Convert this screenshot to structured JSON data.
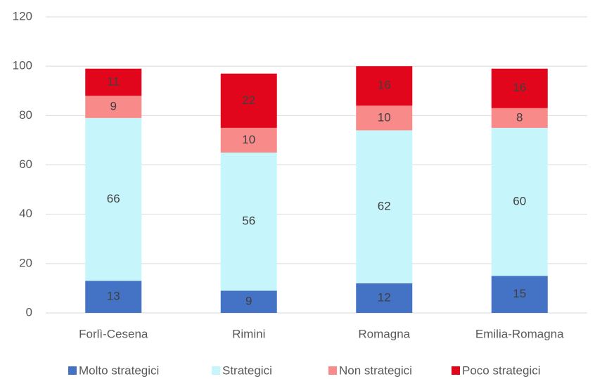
{
  "chart_data": {
    "type": "stacked_bar",
    "categories": [
      "Forlì-Cesena",
      "Rimini",
      "Romagna",
      "Emilia-Romagna"
    ],
    "series": [
      {
        "name": "Molto strategici",
        "color": "#4472c4",
        "values": [
          13,
          9,
          12,
          15
        ]
      },
      {
        "name": "Strategici",
        "color": "#c6f6fb",
        "values": [
          66,
          56,
          62,
          60
        ]
      },
      {
        "name": "Non strategici",
        "color": "#f88a8a",
        "values": [
          9,
          10,
          10,
          8
        ]
      },
      {
        "name": "Poco strategici",
        "color": "#e2061c",
        "values": [
          11,
          22,
          16,
          16
        ]
      }
    ],
    "ylim": [
      0,
      120
    ],
    "yticks": [
      0,
      20,
      40,
      60,
      80,
      100,
      120
    ],
    "grid": true,
    "legend": "bottom"
  }
}
